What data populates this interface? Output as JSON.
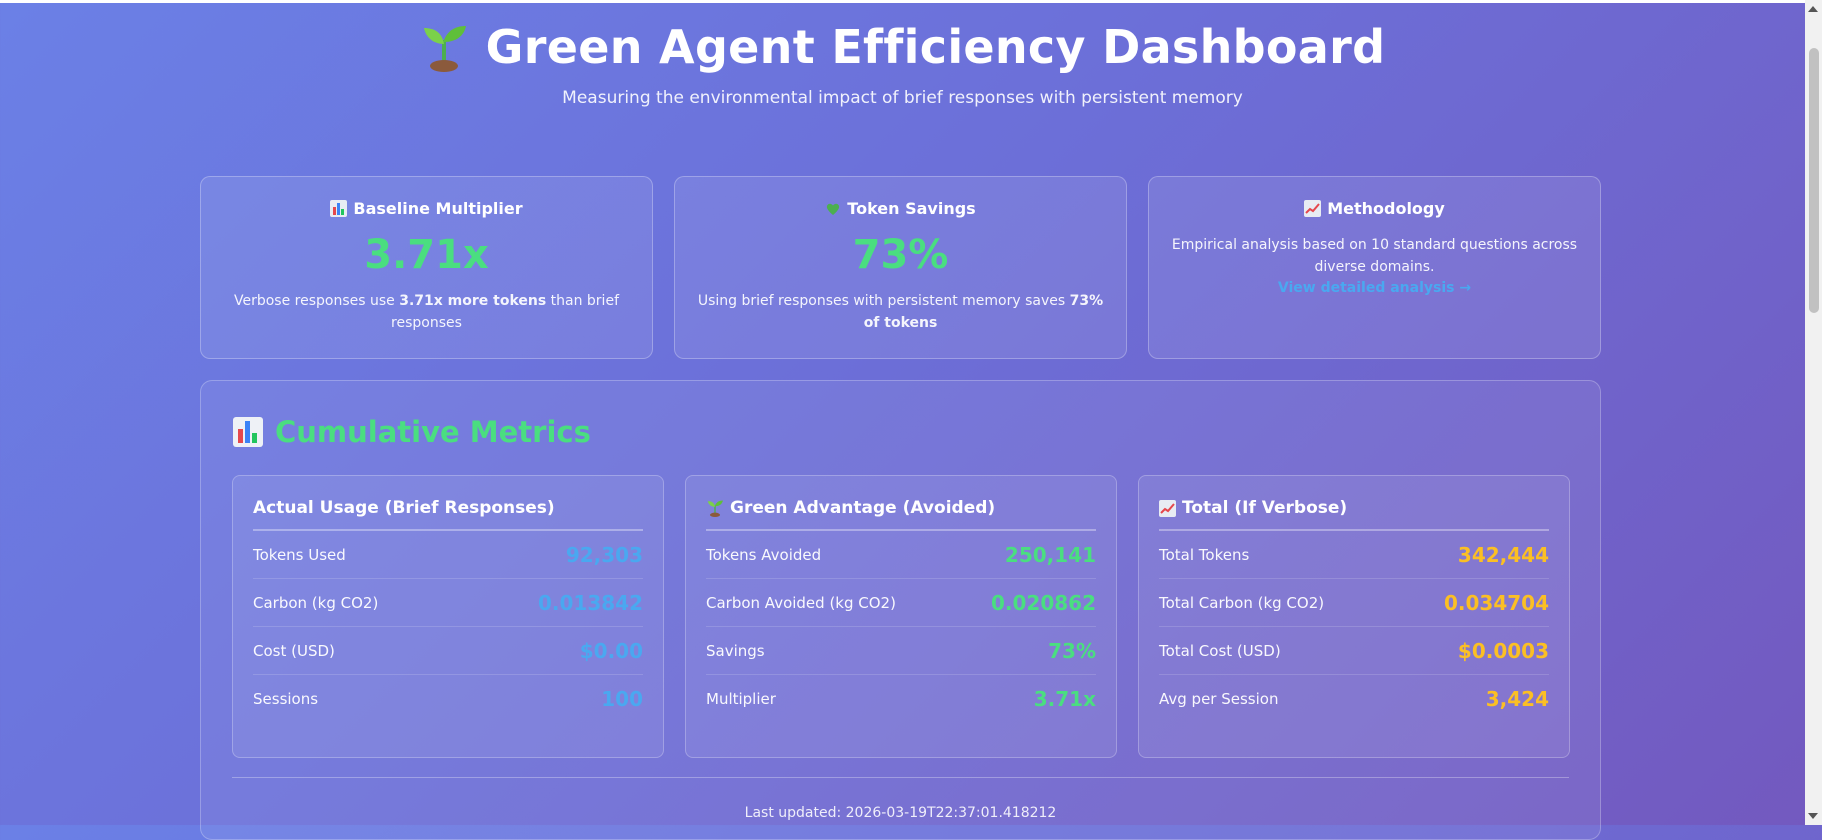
{
  "header": {
    "title": "Green Agent Efficiency Dashboard",
    "subtitle": "Measuring the environmental impact of brief responses with persistent memory",
    "icon": "sprout-icon"
  },
  "cards": {
    "baseline": {
      "title": "Baseline Multiplier",
      "icon": "bar-chart-icon",
      "value": "3.71x",
      "desc_pre": "Verbose responses use ",
      "desc_bold": "3.71x more tokens",
      "desc_post": " than brief responses"
    },
    "savings": {
      "title": "Token Savings",
      "icon": "green-heart-icon",
      "value": "73%",
      "desc_pre": "Using brief responses with persistent memory saves ",
      "desc_bold": "73% of tokens"
    },
    "methodology": {
      "title": "Methodology",
      "icon": "trend-chart-icon",
      "desc": "Empirical analysis based on 10 standard questions across diverse domains.",
      "link": "View detailed analysis →"
    }
  },
  "metrics": {
    "title": "Cumulative Metrics",
    "icon": "bar-chart-icon",
    "actual": {
      "title": "Actual Usage (Brief Responses)",
      "rows": [
        {
          "label": "Tokens Used",
          "value": "92,303"
        },
        {
          "label": "Carbon (kg CO2)",
          "value": "0.013842"
        },
        {
          "label": "Cost (USD)",
          "value": "$0.00"
        },
        {
          "label": "Sessions",
          "value": "100"
        }
      ]
    },
    "avoided": {
      "title": "Green Advantage (Avoided)",
      "icon": "sprout-icon",
      "rows": [
        {
          "label": "Tokens Avoided",
          "value": "250,141"
        },
        {
          "label": "Carbon Avoided (kg CO2)",
          "value": "0.020862"
        },
        {
          "label": "Savings",
          "value": "73%"
        },
        {
          "label": "Multiplier",
          "value": "3.71x"
        }
      ]
    },
    "total": {
      "title": "Total (If Verbose)",
      "icon": "trend-chart-icon",
      "rows": [
        {
          "label": "Total Tokens",
          "value": "342,444"
        },
        {
          "label": "Total Carbon (kg CO2)",
          "value": "0.034704"
        },
        {
          "label": "Total Cost (USD)",
          "value": "$0.0003"
        },
        {
          "label": "Avg per Session",
          "value": "3,424"
        }
      ]
    },
    "last_updated": "Last updated: 2026-03-19T22:37:01.418212"
  },
  "colors": {
    "accent_green": "#4ade80",
    "accent_blue": "#4aa8f0",
    "accent_orange": "#fbbf24"
  }
}
